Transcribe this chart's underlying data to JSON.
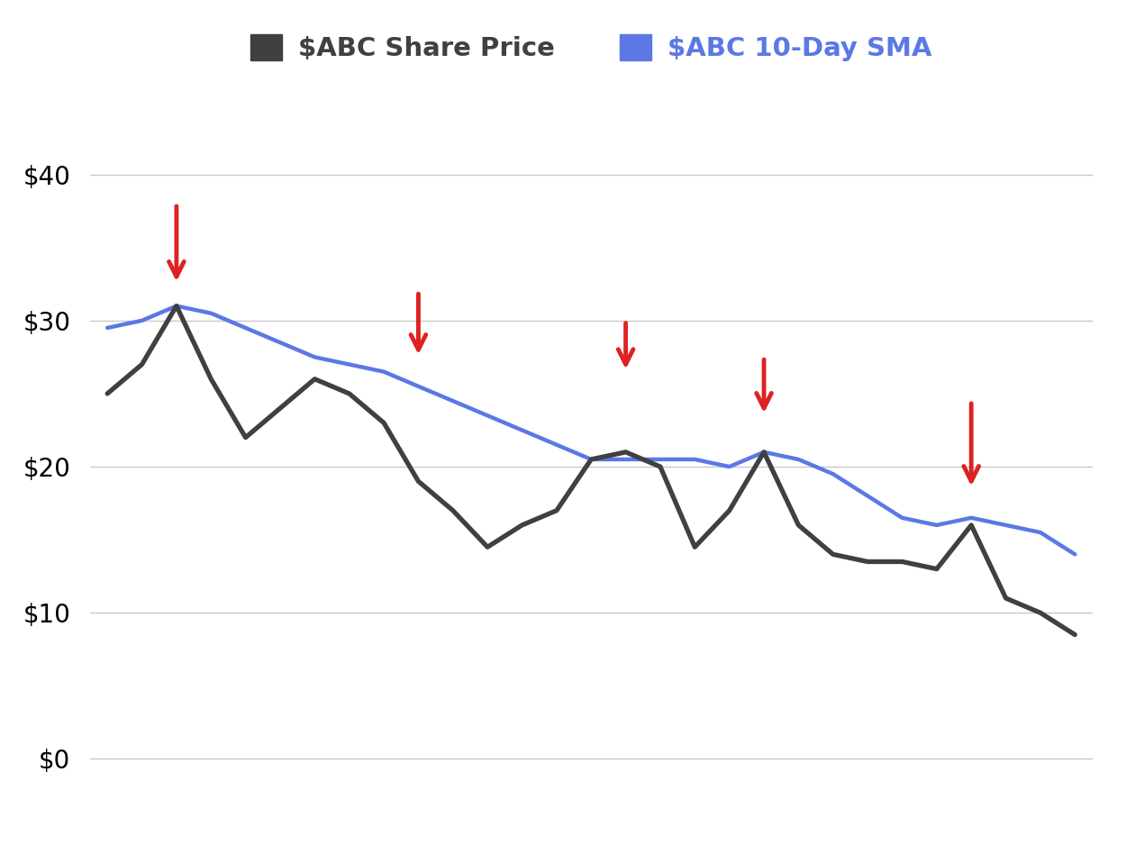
{
  "share_price": [
    25,
    27,
    31,
    26,
    22,
    24,
    26,
    25,
    23,
    19,
    17,
    14.5,
    16,
    17,
    20.5,
    21,
    20,
    14.5,
    17,
    21,
    16,
    14,
    13.5,
    13.5,
    13,
    16,
    11,
    10,
    8.5
  ],
  "sma": [
    29.5,
    30,
    31,
    30.5,
    29.5,
    28.5,
    27.5,
    27,
    26.5,
    25.5,
    24.5,
    23.5,
    22.5,
    21.5,
    20.5,
    20.5,
    20.5,
    20.5,
    20,
    21,
    20.5,
    19.5,
    18,
    16.5,
    16,
    16.5,
    16,
    15.5,
    14
  ],
  "price_color": "#404040",
  "sma_color": "#5b78e5",
  "background_color": "#ffffff",
  "grid_color": "#c8c8c8",
  "arrow_color": "#dd2222",
  "legend_price_label": "$ABC Share Price",
  "legend_sma_label": "$ABC 10-Day SMA",
  "yticks": [
    0,
    10,
    20,
    30,
    40
  ],
  "ylim": [
    -3,
    45
  ],
  "xlim": [
    -0.5,
    28.5
  ],
  "arrows": [
    {
      "tail_x": 2,
      "tail_y": 38,
      "head_x": 2,
      "head_y": 32.5
    },
    {
      "tail_x": 9,
      "tail_y": 32,
      "head_x": 9,
      "head_y": 27.5
    },
    {
      "tail_x": 15,
      "tail_y": 30,
      "head_x": 15,
      "head_y": 26.5
    },
    {
      "tail_x": 19,
      "tail_y": 27.5,
      "head_x": 19,
      "head_y": 23.5
    },
    {
      "tail_x": 25,
      "tail_y": 24.5,
      "head_x": 25,
      "head_y": 18.5
    }
  ],
  "price_linewidth": 3.8,
  "sma_linewidth": 3.2,
  "legend_fontsize": 21,
  "tick_fontsize": 20
}
